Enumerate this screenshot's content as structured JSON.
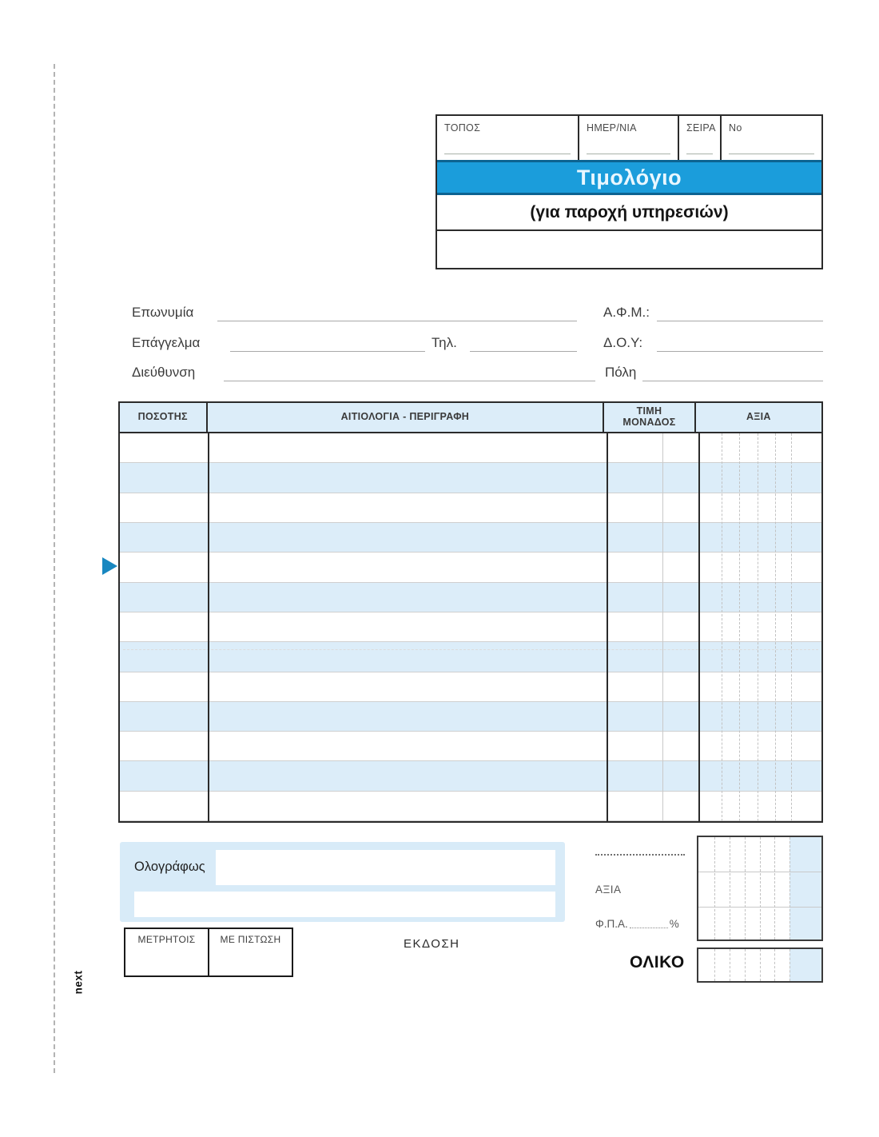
{
  "colors": {
    "accent_blue": "#1B9DDB",
    "accent_dark_blue": "#0D6391",
    "stripe_blue": "#DCEDF9",
    "marker_blue": "#1887C0"
  },
  "header_box": {
    "cells": [
      {
        "label": "ΤΟΠΟΣ"
      },
      {
        "label": "ΗΜΕΡ/ΝΙΑ"
      },
      {
        "label": "ΣΕΙΡΑ"
      },
      {
        "label": "No"
      }
    ],
    "title": "Τιμολόγιο",
    "subtitle": "(για παροχή υπηρεσιών)"
  },
  "fields": {
    "eponymia": "Επωνυμία",
    "afm": "Α.Φ.Μ.:",
    "epaggelma": "Επάγγελμα",
    "til": "Τηλ.",
    "doy": "Δ.Ο.Υ:",
    "dieythynsi": "Διεύθυνση",
    "poli": "Πόλη"
  },
  "table": {
    "headers": [
      "ΠΟΣΟΤΗΣ",
      "ΑΙΤΙΟΛΟΓΙΑ - ΠΕΡΙΓΡΑΦΗ",
      "ΤΙΜΗ\nΜΟΝΑΔΟΣ",
      "ΑΞΙΑ"
    ],
    "row_count": 13
  },
  "footer": {
    "olografos": "Ολογράφως",
    "payment": [
      "ΜΕΤΡΗΤΟΙΣ",
      "ΜΕ ΠΙΣΤΩΣΗ"
    ],
    "ekdosi": "ΕΚΔΟΣΗ",
    "axia": "ΑΞΙΑ",
    "fpa": "Φ.Π.Α.",
    "percent": "%",
    "oliko": "ΟΛΙΚΟ"
  },
  "brand": "next"
}
